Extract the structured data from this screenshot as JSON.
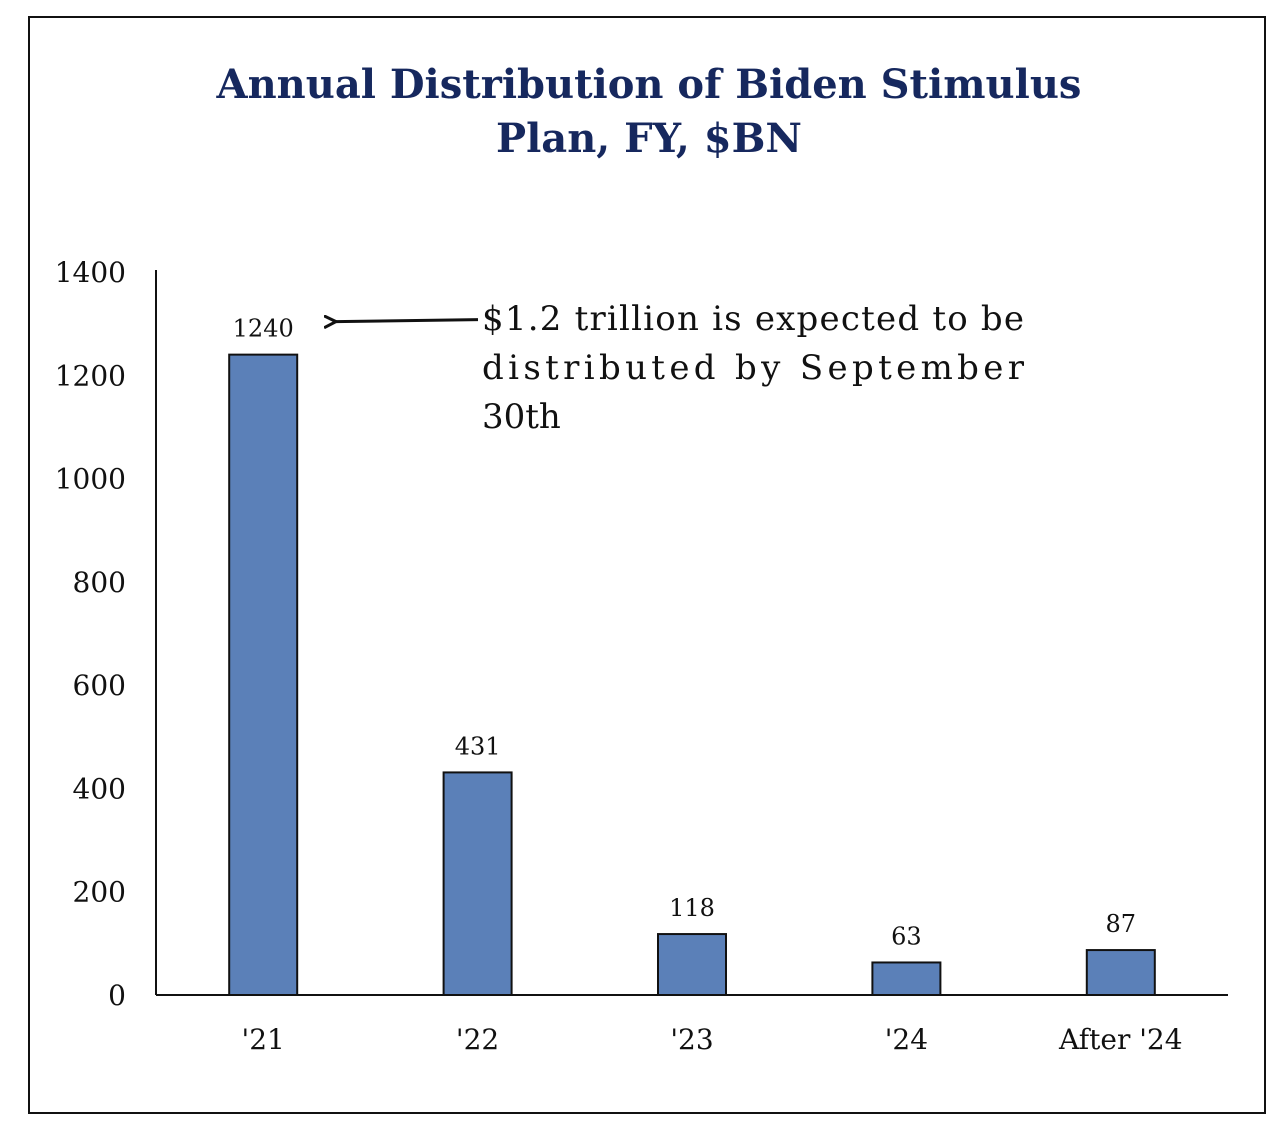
{
  "chart_data": {
    "type": "bar",
    "title_lines": [
      "Annual Distribution of Biden Stimulus",
      "Plan, FY, $BN"
    ],
    "categories": [
      "'21",
      "'22",
      "'23",
      "'24",
      "After '24"
    ],
    "values": [
      1240,
      431,
      118,
      63,
      87
    ],
    "data_labels": [
      "1240",
      "431",
      "118",
      "63",
      "87"
    ],
    "yticks": [
      "0",
      "200",
      "400",
      "600",
      "800",
      "1000",
      "1200",
      "1400"
    ],
    "ylim": [
      0,
      1400
    ],
    "xlabel": "",
    "ylabel": "",
    "grid": false,
    "bar_color": "#5b80b8",
    "annotation": {
      "target_category": "'21",
      "lines": [
        "$1.2 trillion is expected to be",
        "distributed by September",
        "30th"
      ]
    }
  }
}
